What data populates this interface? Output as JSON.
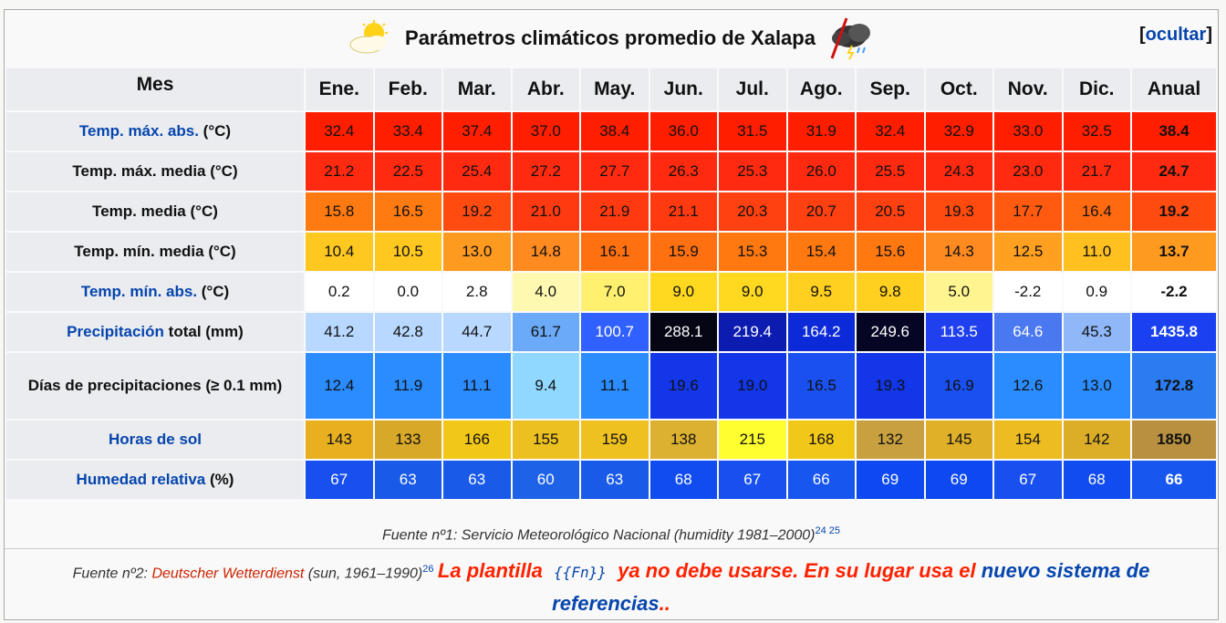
{
  "caption": {
    "title": "Parámetros climáticos promedio de Xalapa",
    "hide_open": "[",
    "hide_label": "ocultar",
    "hide_close": "]"
  },
  "header": {
    "mes": "Mes",
    "months": [
      "Ene.",
      "Feb.",
      "Mar.",
      "Abr.",
      "May.",
      "Jun.",
      "Jul.",
      "Ago.",
      "Sep.",
      "Oct.",
      "Nov.",
      "Dic."
    ],
    "annual": "Anual"
  },
  "rows": [
    {
      "label_link": "Temp. máx. abs.",
      "label_text": " (°C)",
      "values": [
        "32.4",
        "33.4",
        "37.4",
        "37.0",
        "38.4",
        "36.0",
        "31.5",
        "31.9",
        "32.4",
        "32.9",
        "33.0",
        "32.5"
      ],
      "annual": "38.4",
      "colors": [
        "#ff1e00",
        "#ff1e00",
        "#ff1e00",
        "#ff1e00",
        "#ff1e00",
        "#ff1e00",
        "#ff1e00",
        "#ff1e00",
        "#ff1e00",
        "#ff1e00",
        "#ff1e00",
        "#ff1e00"
      ],
      "annual_color": "#ff1e00",
      "text_colors": [
        "#111",
        "#111",
        "#111",
        "#111",
        "#111",
        "#111",
        "#111",
        "#111",
        "#111",
        "#111",
        "#111",
        "#111"
      ],
      "annual_text_color": "#111"
    },
    {
      "label_link": "",
      "label_text": "Temp. máx. media (°C)",
      "values": [
        "21.2",
        "22.5",
        "25.4",
        "27.2",
        "27.7",
        "26.3",
        "25.3",
        "26.0",
        "25.5",
        "24.3",
        "23.0",
        "21.7"
      ],
      "annual": "24.7",
      "colors": [
        "#ff2a10",
        "#ff2a10",
        "#ff2a10",
        "#ff2a10",
        "#ff2a10",
        "#ff2a10",
        "#ff2a10",
        "#ff2a10",
        "#ff2a10",
        "#ff2a10",
        "#ff2a10",
        "#ff2a10"
      ],
      "annual_color": "#ff2a10",
      "text_colors": [
        "#111",
        "#111",
        "#111",
        "#111",
        "#111",
        "#111",
        "#111",
        "#111",
        "#111",
        "#111",
        "#111",
        "#111"
      ],
      "annual_text_color": "#111"
    },
    {
      "label_link": "",
      "label_text": "Temp. media (°C)",
      "values": [
        "15.8",
        "16.5",
        "19.2",
        "21.0",
        "21.9",
        "21.1",
        "20.3",
        "20.7",
        "20.5",
        "19.3",
        "17.7",
        "16.4"
      ],
      "annual": "19.2",
      "colors": [
        "#ff7a10",
        "#ff7a10",
        "#ff4a10",
        "#ff3a10",
        "#ff3a10",
        "#ff3a10",
        "#ff4010",
        "#ff4010",
        "#ff4010",
        "#ff4a10",
        "#ff5a10",
        "#ff6a10"
      ],
      "annual_color": "#ff4a10",
      "text_colors": [
        "#111",
        "#111",
        "#111",
        "#111",
        "#111",
        "#111",
        "#111",
        "#111",
        "#111",
        "#111",
        "#111",
        "#111"
      ],
      "annual_text_color": "#111"
    },
    {
      "label_link": "",
      "label_text": "Temp. mín. media (°C)",
      "values": [
        "10.4",
        "10.5",
        "13.0",
        "14.8",
        "16.1",
        "15.9",
        "15.3",
        "15.4",
        "15.6",
        "14.3",
        "12.5",
        "11.0"
      ],
      "annual": "13.7",
      "colors": [
        "#ffc820",
        "#ffc820",
        "#ff9a20",
        "#ff8a20",
        "#ff7010",
        "#ff7010",
        "#ff7810",
        "#ff7810",
        "#ff7810",
        "#ff8a20",
        "#ffa020",
        "#ffc020"
      ],
      "annual_color": "#ff9a20",
      "text_colors": [
        "#111",
        "#111",
        "#111",
        "#111",
        "#111",
        "#111",
        "#111",
        "#111",
        "#111",
        "#111",
        "#111",
        "#111"
      ],
      "annual_text_color": "#111"
    },
    {
      "label_link": "Temp. mín. abs.",
      "label_text": " (°C)",
      "values": [
        "0.2",
        "0.0",
        "2.8",
        "4.0",
        "7.0",
        "9.0",
        "9.0",
        "9.5",
        "9.8",
        "5.0",
        "-2.2",
        "0.9"
      ],
      "annual": "-2.2",
      "colors": [
        "#ffffff",
        "#ffffff",
        "#ffffff",
        "#fff8b0",
        "#fff070",
        "#ffd820",
        "#ffd820",
        "#ffd020",
        "#ffd020",
        "#fff590",
        "#ffffff",
        "#ffffff"
      ],
      "annual_color": "#ffffff",
      "text_colors": [
        "#111",
        "#111",
        "#111",
        "#111",
        "#111",
        "#111",
        "#111",
        "#111",
        "#111",
        "#111",
        "#111",
        "#111"
      ],
      "annual_text_color": "#111"
    },
    {
      "label_link": "Precipitación",
      "label_text": " total (mm)",
      "values": [
        "41.2",
        "42.8",
        "44.7",
        "61.7",
        "100.7",
        "288.1",
        "219.4",
        "164.2",
        "249.6",
        "113.5",
        "64.6",
        "45.3"
      ],
      "annual": "1435.8",
      "colors": [
        "#b8d8ff",
        "#b8d8ff",
        "#b8d8ff",
        "#6aaaf8",
        "#3060ff",
        "#050514",
        "#0d1cb0",
        "#0d2ad8",
        "#050524",
        "#2040f0",
        "#4a78f0",
        "#90b8f8"
      ],
      "annual_color": "#1a40f0",
      "text_colors": [
        "#111",
        "#111",
        "#111",
        "#111",
        "#ffffff",
        "#ffffff",
        "#ffffff",
        "#ffffff",
        "#ffffff",
        "#ffffff",
        "#ffffff",
        "#111"
      ],
      "annual_text_color": "#ffffff"
    },
    {
      "label_link": "",
      "label_text": "Días de precipitaciones (≥ 0.1 mm)",
      "values": [
        "12.4",
        "11.9",
        "11.1",
        "9.4",
        "11.1",
        "19.6",
        "19.0",
        "16.5",
        "19.3",
        "16.9",
        "12.6",
        "13.0"
      ],
      "annual": "172.8",
      "colors": [
        "#2a8cff",
        "#2a8cff",
        "#2a8cff",
        "#90d8ff",
        "#2a8cff",
        "#1236e8",
        "#1236e8",
        "#1a50f0",
        "#1236e8",
        "#1a50f0",
        "#2a8cff",
        "#2a8cff"
      ],
      "annual_color": "#2a7cf0",
      "text_colors": [
        "#111",
        "#111",
        "#111",
        "#111",
        "#111",
        "#111",
        "#111",
        "#111",
        "#111",
        "#111",
        "#111",
        "#111"
      ],
      "annual_text_color": "#111"
    },
    {
      "label_link": "Horas de sol",
      "label_text": "",
      "values": [
        "143",
        "133",
        "166",
        "155",
        "159",
        "138",
        "215",
        "168",
        "132",
        "145",
        "154",
        "142"
      ],
      "annual": "1850",
      "colors": [
        "#e8b020",
        "#d8a828",
        "#f2c818",
        "#ecc020",
        "#eec020",
        "#dcb030",
        "#ffff30",
        "#f2c818",
        "#c8a040",
        "#e0b028",
        "#ecbc20",
        "#dcae28"
      ],
      "annual_color": "#b89040",
      "text_colors": [
        "#111",
        "#111",
        "#111",
        "#111",
        "#111",
        "#111",
        "#111",
        "#111",
        "#111",
        "#111",
        "#111",
        "#111"
      ],
      "annual_text_color": "#111"
    },
    {
      "label_link": "Humedad relativa",
      "label_text": " (%)",
      "values": [
        "67",
        "63",
        "63",
        "60",
        "63",
        "68",
        "67",
        "66",
        "69",
        "69",
        "67",
        "68"
      ],
      "annual": "66",
      "colors": [
        "#1850f0",
        "#1a5ae8",
        "#1a5ae8",
        "#1e62e8",
        "#1a5ae8",
        "#104cf0",
        "#1850f0",
        "#1856f0",
        "#0e48f0",
        "#0e48f0",
        "#1850f0",
        "#104cf0"
      ],
      "annual_color": "#1856f0",
      "text_colors": [
        "#ffffff",
        "#ffffff",
        "#ffffff",
        "#ffffff",
        "#ffffff",
        "#ffffff",
        "#ffffff",
        "#ffffff",
        "#ffffff",
        "#ffffff",
        "#ffffff",
        "#ffffff"
      ],
      "annual_text_color": "#ffffff"
    }
  ],
  "footer1": {
    "text": "Fuente nº1: Servicio Meteorológico Nacional (humidity 1981–2000)",
    "refs": "24 25"
  },
  "footer2": {
    "prefix": "Fuente nº2: ",
    "dwd": "Deutscher Wetterdienst",
    "suffix": " (sun, 1961–1990)",
    "ref": "26",
    "warn_a": "La plantilla",
    "warn_tpl": "{{Fn}}",
    "warn_b": "ya no debe usarse. En su lugar usa el",
    "warn_link": "nuevo sistema de referencias",
    "warn_end": ".."
  },
  "icons": {
    "left": "sun-cloud-icon",
    "right": "storm-cloud-icon"
  }
}
